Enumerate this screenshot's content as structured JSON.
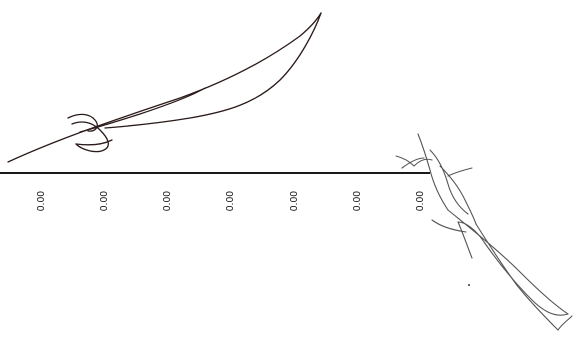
{
  "document": {
    "amounts": [
      "0.00",
      "0.00",
      "0.00",
      "0.00",
      "0.00",
      "0.00",
      "0.00"
    ]
  },
  "signatures": [
    {
      "name": "signature-top-left",
      "ink_color": "#2b1a1a"
    },
    {
      "name": "signature-bottom-right",
      "ink_color": "#555555"
    }
  ],
  "colors": {
    "background": "#ffffff",
    "rule": "#1a1a1a",
    "text": "#111111"
  }
}
